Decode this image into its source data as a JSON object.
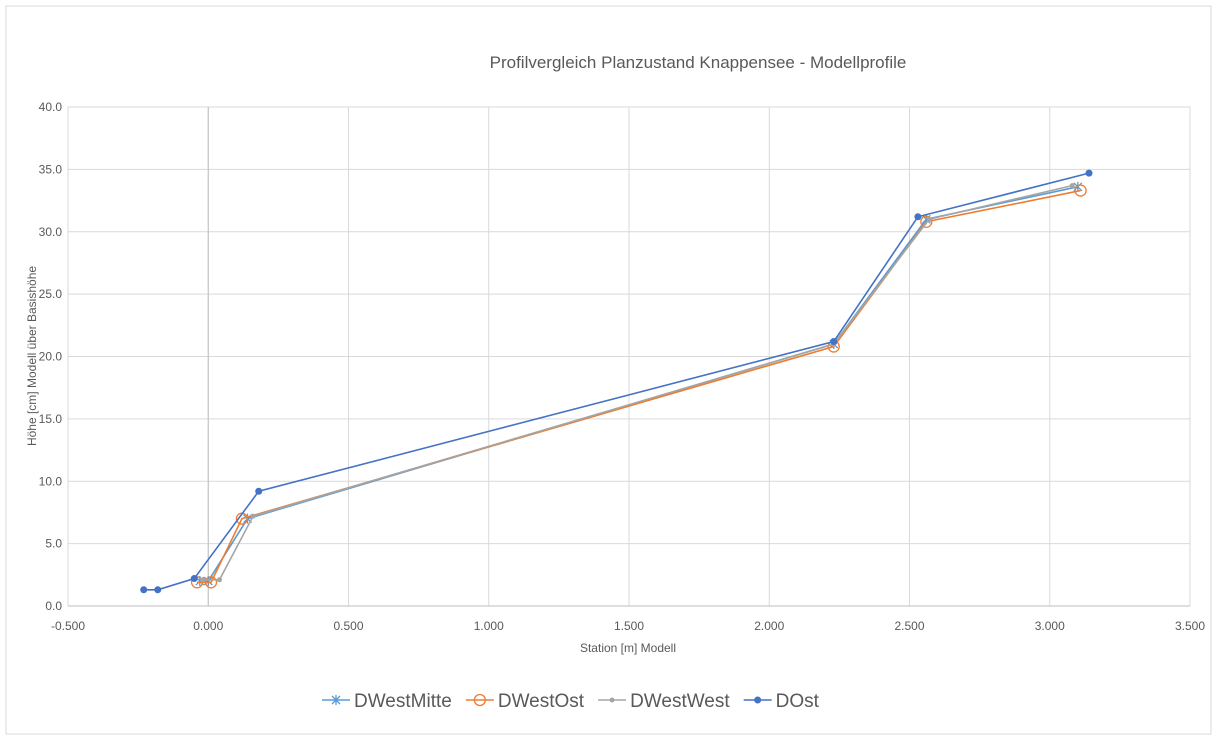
{
  "chart_data": {
    "type": "scatter-line",
    "title": "Profilvergleich Planzustand Knappensee - Modellprofile",
    "xlabel": "Station [m] Modell",
    "ylabel": "Höhe [cm] Modell über Basishöhe",
    "xlim": [
      -0.5,
      3.5
    ],
    "xticks": [
      {
        "value": -0.5,
        "label": "-0.500"
      },
      {
        "value": 0,
        "label": "0.000"
      },
      {
        "value": 0.5,
        "label": "0.500"
      },
      {
        "value": 1,
        "label": "1.000"
      },
      {
        "value": 1.5,
        "label": "1.500"
      },
      {
        "value": 2,
        "label": "2.000"
      },
      {
        "value": 2.5,
        "label": "2.500"
      },
      {
        "value": 3,
        "label": "3.000"
      },
      {
        "value": 3.5,
        "label": "3.500"
      }
    ],
    "ylim": [
      0,
      40
    ],
    "yticks": [
      {
        "value": 0,
        "label": "0.0"
      },
      {
        "value": 5,
        "label": "5.0"
      },
      {
        "value": 10,
        "label": "10.0"
      },
      {
        "value": 15,
        "label": "15.0"
      },
      {
        "value": 20,
        "label": "20.0"
      },
      {
        "value": 25,
        "label": "25.0"
      },
      {
        "value": 30,
        "label": "30.0"
      },
      {
        "value": 35,
        "label": "35.0"
      },
      {
        "value": 40,
        "label": "40.0"
      }
    ],
    "grid": true,
    "legend": "bottom",
    "series": [
      {
        "name": "DWestMitte",
        "color": "#5b9bd5",
        "marker": "cross",
        "x": [
          -0.03,
          0.0,
          0.14,
          2.23,
          2.56,
          3.1
        ],
        "values": [
          2.0,
          2.0,
          7.0,
          21.0,
          31.0,
          33.6
        ]
      },
      {
        "name": "DWestOst",
        "color": "#ed7d31",
        "marker": "open-circle",
        "x": [
          -0.04,
          0.01,
          0.12,
          2.23,
          2.56,
          3.11
        ],
        "values": [
          1.9,
          1.9,
          7.0,
          20.8,
          30.8,
          33.3
        ]
      },
      {
        "name": "DWestWest",
        "color": "#a5a5a5",
        "marker": "dot",
        "x": [
          -0.02,
          0.04,
          0.16,
          2.23,
          2.57,
          3.08
        ],
        "values": [
          2.1,
          2.1,
          7.2,
          21.0,
          31.0,
          33.7
        ]
      },
      {
        "name": "DOst",
        "color": "#4472c4",
        "marker": "circle",
        "x": [
          -0.23,
          -0.18,
          -0.05,
          0.18,
          2.23,
          2.53,
          3.14
        ],
        "values": [
          1.3,
          1.3,
          2.2,
          9.2,
          21.2,
          31.2,
          34.7
        ]
      }
    ]
  }
}
